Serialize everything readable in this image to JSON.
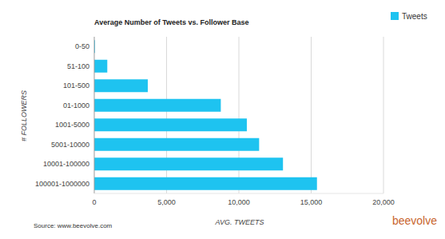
{
  "chart_data": {
    "type": "bar",
    "orientation": "horizontal",
    "title": "Average Number of Tweets vs. Follower Base",
    "x_label": "AVG. TWEETS",
    "y_label": "# FOLLOWERS",
    "categories": [
      "0-50",
      "51-100",
      "101-500",
      "01-1000",
      "1001-5000",
      "5001-10000",
      "10001-100000",
      "100001-1000000"
    ],
    "series": [
      {
        "name": "Tweets",
        "color": "#1ec3f0",
        "values": [
          50,
          900,
          3700,
          8750,
          10550,
          11400,
          13050,
          15400
        ]
      }
    ],
    "xlim": [
      0,
      20000
    ],
    "xticks": [
      0,
      {
        "value": 5000,
        "label": "5,000"
      },
      {
        "value": 10000,
        "label": "10,000"
      },
      {
        "value": 15000,
        "label": "15,000"
      },
      {
        "value": 20000,
        "label": "20,000"
      }
    ],
    "grid": true,
    "legend": "top-right",
    "annotations": [
      "Source: www.beevolve.com",
      "beevolve"
    ]
  }
}
